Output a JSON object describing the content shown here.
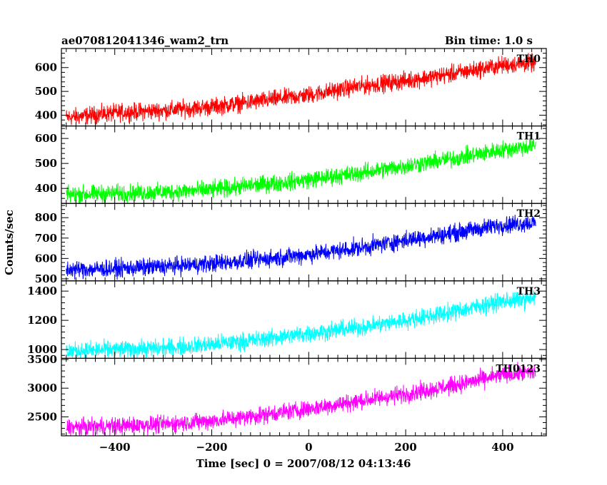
{
  "header": {
    "title": "ae070812041346_wam2_trn",
    "bin_time": "Bin time: 1.0 s"
  },
  "chart_data": {
    "type": "line",
    "title": "ae070812041346_wam2_trn",
    "subtitle": "Bin time: 1.0 s",
    "xlabel": "Time [sec] 0 = 2007/08/12 04:13:46",
    "ylabel": "Counts/sec",
    "xlim": [
      -510,
      490
    ],
    "x_ticks": [
      -400,
      -200,
      0,
      200,
      400
    ],
    "x_tick_labels": [
      "−400",
      "−200",
      "0",
      "200",
      "400"
    ],
    "grid": false,
    "series": [
      {
        "name": "TH0",
        "color": "#ff0000",
        "ylim": [
          355,
          680
        ],
        "y_ticks": [
          400,
          500,
          600
        ],
        "y_tick_labels": [
          "400",
          "500",
          "600"
        ],
        "x": [
          -500,
          -400,
          -300,
          -200,
          -100,
          0,
          100,
          200,
          300,
          400,
          465
        ],
        "y": [
          390,
          410,
          420,
          435,
          460,
          485,
          520,
          545,
          575,
          610,
          620
        ]
      },
      {
        "name": "TH1",
        "color": "#00ff00",
        "ylim": [
          340,
          650
        ],
        "y_ticks": [
          400,
          500,
          600
        ],
        "y_tick_labels": [
          "400",
          "500",
          "600"
        ],
        "x": [
          -500,
          -400,
          -300,
          -200,
          -100,
          0,
          100,
          200,
          300,
          400,
          465
        ],
        "y": [
          375,
          380,
          385,
          395,
          415,
          435,
          460,
          490,
          520,
          555,
          570
        ]
      },
      {
        "name": "TH2",
        "color": "#0000ff",
        "ylim": [
          490,
          870
        ],
        "y_ticks": [
          500,
          600,
          700,
          800
        ],
        "y_tick_labels": [
          "500",
          "600",
          "700",
          "800"
        ],
        "x": [
          -500,
          -400,
          -300,
          -200,
          -100,
          0,
          100,
          200,
          300,
          400,
          465
        ],
        "y": [
          545,
          550,
          560,
          575,
          595,
          620,
          650,
          690,
          725,
          765,
          775
        ]
      },
      {
        "name": "TH3",
        "color": "#00ffff",
        "ylim": [
          940,
          1470
        ],
        "y_ticks": [
          1000,
          1200,
          1400
        ],
        "y_tick_labels": [
          "1000",
          "1200",
          "1400"
        ],
        "x": [
          -500,
          -400,
          -300,
          -200,
          -100,
          0,
          100,
          200,
          300,
          400,
          465
        ],
        "y": [
          990,
          1000,
          1010,
          1035,
          1070,
          1110,
          1150,
          1200,
          1260,
          1330,
          1350
        ]
      },
      {
        "name": "TH0123",
        "color": "#ff00ff",
        "ylim": [
          2170,
          3520
        ],
        "y_ticks": [
          2500,
          3000,
          3500
        ],
        "y_tick_labels": [
          "2500",
          "3000",
          "3500"
        ],
        "x": [
          -500,
          -400,
          -300,
          -200,
          -100,
          0,
          100,
          200,
          300,
          400,
          465
        ],
        "y": [
          2310,
          2340,
          2370,
          2430,
          2530,
          2640,
          2770,
          2900,
          3050,
          3230,
          3280
        ]
      }
    ]
  }
}
